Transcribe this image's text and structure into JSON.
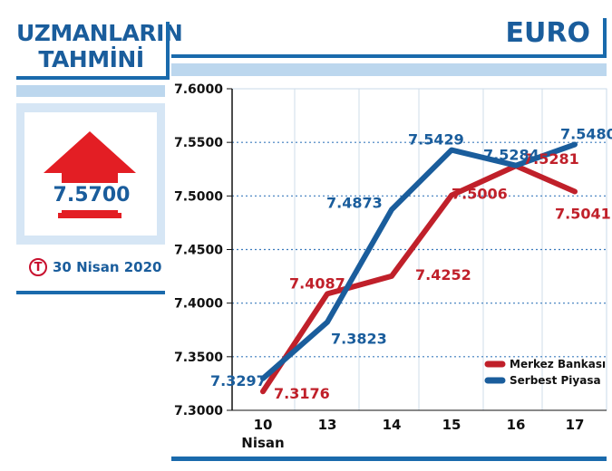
{
  "left_panel": {
    "title_line1": "UZMANLARIN",
    "title_line2": "TAHMİNİ",
    "prediction_value": "7.5700",
    "prediction_direction": "up",
    "arrow_color": "#e31e24",
    "logo_letter": "T",
    "date": "30 Nisan 2020"
  },
  "header": {
    "currency": "EURO"
  },
  "colors": {
    "accent_blue": "#1a5d9c",
    "light_band": "#bcd7ee"
  },
  "chart_data": {
    "type": "line",
    "categories": [
      "10",
      "13",
      "14",
      "15",
      "16",
      "17"
    ],
    "first_category_sublabel": "Nisan",
    "y_ticks": [
      "7.6000",
      "7.5500",
      "7.5000",
      "7.4500",
      "7.4000",
      "7.3500",
      "7.3000"
    ],
    "ylim": [
      7.3,
      7.6
    ],
    "series": [
      {
        "name": "Merkez Bankası",
        "color": "#c0202a",
        "values": [
          7.3176,
          7.4087,
          7.4252,
          7.5006,
          7.5281,
          7.5041
        ],
        "labels": [
          "7.3176",
          "7.4087",
          "7.4252",
          "7.5006",
          "7.5281",
          "7.5041"
        ]
      },
      {
        "name": "Serbest Piyasa",
        "color": "#1a5d9c",
        "values": [
          7.3297,
          7.3823,
          7.4873,
          7.5429,
          7.5284,
          7.548
        ],
        "labels": [
          "7.3297",
          "7.3823",
          "7.4873",
          "7.5429",
          "7.5284",
          "7.5480"
        ]
      }
    ],
    "legend_position": "bottom-right",
    "grid": true
  }
}
